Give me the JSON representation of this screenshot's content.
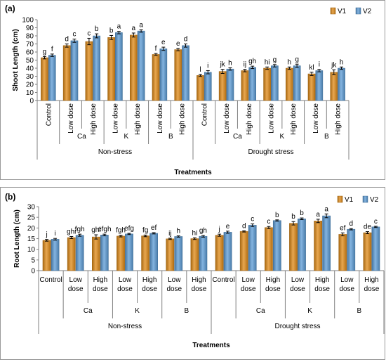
{
  "colors": {
    "V1": "#e08a16",
    "V2": "#5b9bd5",
    "axis": "#7f7f7f"
  },
  "chart_data": [
    {
      "id": "a",
      "type": "bar",
      "panel_label": "(a)",
      "ylabel": "Shoot Length (cm)",
      "xlabel": "Treatments",
      "ylim": [
        0,
        100
      ],
      "yticks": [
        0,
        10,
        20,
        30,
        40,
        50,
        60,
        70,
        80,
        90,
        100
      ],
      "grid": false,
      "legend": "top-right",
      "category_orientation": "vertical",
      "categories": [
        "Control",
        "Low dose",
        "High dose",
        "Low dose",
        "High dose",
        "Low dose",
        "High dose",
        "Control",
        "Low dose",
        "High dose",
        "Low dose",
        "High dose",
        "Low dose",
        "High dose"
      ],
      "nutrients": [
        {
          "label": "Ca",
          "span": [
            1,
            2
          ]
        },
        {
          "label": "K",
          "span": [
            3,
            4
          ]
        },
        {
          "label": "B",
          "span": [
            5,
            6
          ]
        },
        {
          "label": "Ca",
          "span": [
            8,
            9
          ]
        },
        {
          "label": "K",
          "span": [
            10,
            11
          ]
        },
        {
          "label": "B",
          "span": [
            12,
            13
          ]
        }
      ],
      "conditions": [
        {
          "label": "Non-stress",
          "span": [
            0,
            6
          ]
        },
        {
          "label": "Drought stress",
          "span": [
            7,
            13
          ]
        }
      ],
      "series": [
        {
          "name": "V1",
          "values": [
            53,
            68,
            73,
            78,
            81,
            57,
            63,
            31,
            36,
            37,
            40,
            40,
            33,
            35
          ],
          "errors": [
            1.5,
            2,
            4,
            2.5,
            2.5,
            1.2,
            1.5,
            1.2,
            2.5,
            1.5,
            1.5,
            1.5,
            2,
            3
          ],
          "labels": [
            "g",
            "d",
            "c",
            "b",
            "a",
            "f",
            "e",
            "l",
            "jk",
            "ij",
            "hi",
            "h",
            "kl",
            "jk"
          ]
        },
        {
          "name": "V2",
          "values": [
            56,
            74,
            80,
            84,
            86,
            64,
            68,
            35,
            39,
            41,
            43,
            43,
            37,
            40
          ],
          "errors": [
            1.5,
            2,
            2.5,
            1.5,
            1.5,
            2,
            2,
            2,
            1.5,
            1.5,
            1.5,
            2,
            1.5,
            1.5
          ],
          "labels": [
            "f",
            "c",
            "b",
            "a",
            "a",
            "e",
            "d",
            "i",
            "h",
            "gh",
            "g",
            "g",
            "i",
            "h"
          ]
        }
      ]
    },
    {
      "id": "b",
      "type": "bar",
      "panel_label": "(b)",
      "ylabel": "Root Length (cm)",
      "xlabel": "Treatments",
      "ylim": [
        0,
        30
      ],
      "yticks": [
        0,
        5,
        10,
        15,
        20,
        25,
        30
      ],
      "grid": false,
      "legend": "top-right",
      "category_orientation": "horizontal",
      "categories": [
        "Control",
        "Low dose",
        "High dose",
        "Low dose",
        "High dose",
        "Low dose",
        "High dose",
        "Control",
        "Low dose",
        "High dose",
        "Low dose",
        "High dose",
        "Low dose",
        "High dose"
      ],
      "nutrients": [
        {
          "label": "Ca",
          "span": [
            1,
            2
          ]
        },
        {
          "label": "K",
          "span": [
            3,
            4
          ]
        },
        {
          "label": "B",
          "span": [
            5,
            6
          ]
        },
        {
          "label": "Ca",
          "span": [
            8,
            9
          ]
        },
        {
          "label": "K",
          "span": [
            10,
            11
          ]
        },
        {
          "label": "B",
          "span": [
            12,
            13
          ]
        }
      ],
      "conditions": [
        {
          "label": "Non-stress",
          "span": [
            0,
            6
          ]
        },
        {
          "label": "Drought stress",
          "span": [
            7,
            13
          ]
        }
      ],
      "series": [
        {
          "name": "V1",
          "values": [
            14.2,
            15.5,
            15.8,
            16.2,
            16.3,
            14.9,
            15.0,
            16.6,
            18.4,
            20.2,
            22.2,
            23.3,
            17.0,
            17.8
          ],
          "errors": [
            0.4,
            0.5,
            1.0,
            0.4,
            0.4,
            0.3,
            0.4,
            0.5,
            0.3,
            0.5,
            0.8,
            0.8,
            0.7,
            0.5
          ],
          "labels": [
            "j",
            "ghi",
            "ghi",
            "fgh",
            "fg",
            "ij",
            "hi",
            "j",
            "d",
            "c",
            "b",
            "a",
            "ef",
            "de"
          ]
        },
        {
          "name": "V2",
          "values": [
            14.7,
            16.6,
            16.7,
            17.2,
            17.5,
            16.0,
            16.1,
            18.0,
            21.3,
            23.5,
            24.3,
            25.7,
            19.4,
            20.5
          ],
          "errors": [
            0.4,
            0.5,
            0.4,
            0.3,
            0.3,
            0.3,
            0.4,
            0.5,
            0.6,
            0.3,
            0.4,
            0.9,
            0.3,
            0.3
          ],
          "labels": [
            "i",
            "fgh",
            "efgh",
            "efg",
            "ef",
            "h",
            "gh",
            "e",
            "c",
            "b",
            "b",
            "a",
            "d",
            "c"
          ]
        }
      ]
    }
  ]
}
